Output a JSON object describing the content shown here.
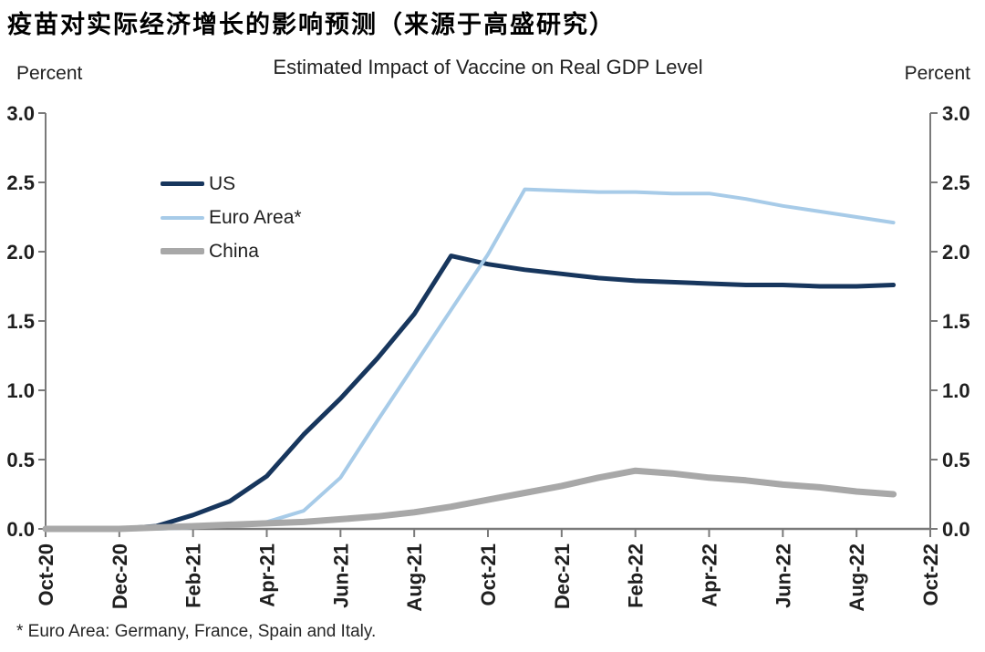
{
  "page": {
    "heading": "疫苗对实际经济增长的影响预测（来源于高盛研究）",
    "footnote": "* Euro Area: Germany, France, Spain and Italy."
  },
  "chart_data": {
    "type": "line",
    "title": "Estimated Impact of Vaccine on Real GDP Level",
    "left_axis_label": "Percent",
    "right_axis_label": "Percent",
    "x": [
      "Oct-20",
      "Nov-20",
      "Dec-20",
      "Jan-21",
      "Feb-21",
      "Mar-21",
      "Apr-21",
      "May-21",
      "Jun-21",
      "Jul-21",
      "Aug-21",
      "Sep-21",
      "Oct-21",
      "Nov-21",
      "Dec-21",
      "Jan-22",
      "Feb-22",
      "Mar-22",
      "Apr-22",
      "May-22",
      "Jun-22",
      "Jul-22",
      "Aug-22",
      "Sep-22"
    ],
    "x_tick_labels": [
      "Oct-20",
      "Dec-20",
      "Feb-21",
      "Apr-21",
      "Jun-21",
      "Aug-21",
      "Oct-21",
      "Dec-21",
      "Feb-22",
      "Apr-22",
      "Jun-22",
      "Aug-22",
      "Oct-22"
    ],
    "x_axis_total_months": 24,
    "ylim": [
      0.0,
      3.0
    ],
    "y_ticks": [
      0.0,
      0.5,
      1.0,
      1.5,
      2.0,
      2.5,
      3.0
    ],
    "grid": false,
    "legend_position": "top-left-inside",
    "axis_color": "#7a7a7a",
    "text_color": "#1f1f1f",
    "series": [
      {
        "name": "US",
        "color": "#17365d",
        "line_width": 5,
        "values": [
          0.0,
          0.0,
          0.0,
          0.02,
          0.1,
          0.2,
          0.38,
          0.68,
          0.94,
          1.23,
          1.55,
          1.97,
          1.91,
          1.87,
          1.84,
          1.81,
          1.79,
          1.78,
          1.77,
          1.76,
          1.76,
          1.75,
          1.75,
          1.76
        ]
      },
      {
        "name": "Euro Area*",
        "color": "#a7cbe8",
        "line_width": 4,
        "values": [
          0.0,
          0.0,
          0.0,
          0.0,
          0.01,
          0.03,
          0.05,
          0.13,
          0.37,
          0.78,
          1.18,
          1.58,
          1.98,
          2.45,
          2.44,
          2.43,
          2.43,
          2.42,
          2.42,
          2.38,
          2.33,
          2.29,
          2.25,
          2.21
        ]
      },
      {
        "name": "China",
        "color": "#a8a8a8",
        "line_width": 7,
        "values": [
          0.0,
          0.0,
          0.0,
          0.01,
          0.02,
          0.03,
          0.04,
          0.05,
          0.07,
          0.09,
          0.12,
          0.16,
          0.21,
          0.26,
          0.31,
          0.37,
          0.42,
          0.4,
          0.37,
          0.35,
          0.32,
          0.3,
          0.27,
          0.25
        ]
      }
    ]
  }
}
